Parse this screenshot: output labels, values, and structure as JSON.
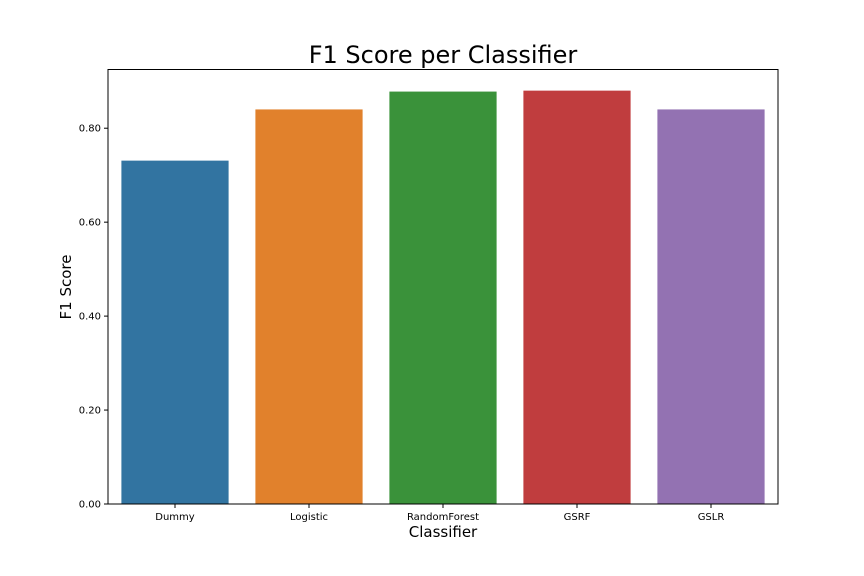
{
  "chart_data": {
    "type": "bar",
    "title": "F1 Score per Classifier",
    "xlabel": "Classifier",
    "ylabel": "F1 Score",
    "categories": [
      "Dummy",
      "Logistic",
      "RandomForest",
      "GSRF",
      "GSLR"
    ],
    "values": [
      0.731,
      0.84,
      0.878,
      0.88,
      0.84
    ],
    "colors": [
      "#3274a1",
      "#e1812c",
      "#3a923a",
      "#c03d3e",
      "#9372b2"
    ],
    "ylim": [
      0,
      0.925
    ],
    "yticks": [
      0.0,
      0.2,
      0.4,
      0.6,
      0.8
    ],
    "ytick_labels": [
      "0.00",
      "0.20",
      "0.40",
      "0.60",
      "0.80"
    ],
    "grid": false,
    "legend": false
  }
}
